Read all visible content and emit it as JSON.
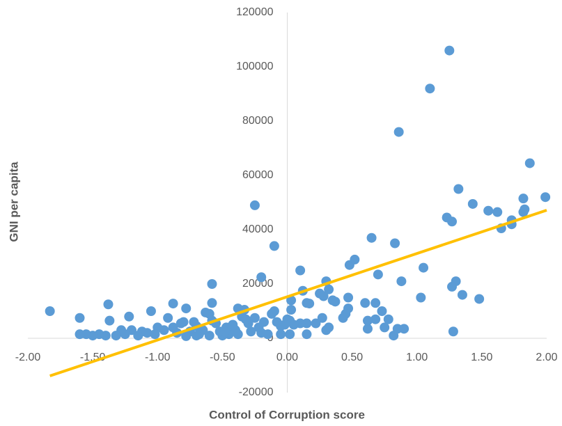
{
  "chart_data": {
    "type": "scatter",
    "x_label": "Control of Corruption score",
    "y_label": "GNI per capita",
    "xlim": [
      -2,
      2
    ],
    "xticks": [
      {
        "value": -2,
        "label": "-2.00"
      },
      {
        "value": -1.5,
        "label": "-1.50"
      },
      {
        "value": -1,
        "label": "-1.00"
      },
      {
        "value": -0.5,
        "label": "-0.50"
      },
      {
        "value": 0,
        "label": "0.00"
      },
      {
        "value": 0.5,
        "label": "0.50"
      },
      {
        "value": 1,
        "label": "1.00"
      },
      {
        "value": 1.5,
        "label": "1.50"
      },
      {
        "value": 2,
        "label": "2.00"
      }
    ],
    "ylim": [
      -20000,
      120000
    ],
    "yticks": [
      -20000,
      0,
      20000,
      40000,
      60000,
      80000,
      100000,
      120000
    ],
    "grid": false,
    "series": [
      {
        "color": "#5b9bd5",
        "x": [
          -1.83,
          -1.6,
          -1.38,
          -1.22,
          -1.05,
          -0.88,
          -0.78,
          -0.58,
          -0.58,
          -0.25,
          -0.2,
          -0.1,
          0.1,
          0.12,
          0.3,
          0.32,
          0.48,
          0.52,
          0.65,
          0.7,
          0.83,
          0.86,
          0.88,
          1.1,
          1.25,
          1.05,
          1.03,
          1.23,
          1.27,
          1.32,
          1.3,
          1.27,
          1.35,
          1.43,
          1.48,
          1.55,
          1.62,
          1.65,
          1.73,
          1.73,
          1.82,
          1.82,
          1.83,
          1.87,
          1.99,
          1.28,
          0.82,
          0.85,
          0.9,
          0.78,
          0.73,
          0.68,
          0.68,
          0.75,
          0.62,
          0.6,
          0.47,
          0.47,
          0.45,
          0.43,
          0.35,
          0.37,
          0.28,
          0.25,
          0.27,
          0.22,
          0.3,
          0.32,
          0.15,
          0.17,
          0.15,
          0.15,
          0.1,
          0.05,
          0.02,
          0,
          0.03,
          0.03,
          0.02,
          -0.02,
          -0.05,
          -0.08,
          -0.1,
          -0.12,
          -0.18,
          -0.2,
          -0.22,
          -0.25,
          -0.28,
          -0.3,
          -0.33,
          -0.35,
          -0.38,
          -0.4,
          -0.42,
          -0.45,
          -0.47,
          -0.5,
          -0.52,
          -0.55,
          -0.58,
          -0.6,
          -0.63,
          -0.65,
          -0.68,
          -0.7,
          -0.72,
          -0.75,
          -0.78,
          -0.8,
          -0.82,
          -0.85,
          -0.88,
          -0.92,
          -0.95,
          -1,
          -1.02,
          -1.08,
          -1.12,
          -1.15,
          -1.2,
          -1.25,
          -1.28,
          -1.32,
          -1.37,
          -1.4,
          -1.45,
          -1.5,
          -1.55,
          -1.6,
          -0.38,
          -0.15,
          -0.6,
          -0.7,
          -0.32,
          -0.48,
          -0.05,
          0.62
        ],
        "values": [
          10000,
          7500,
          12500,
          8000,
          10000,
          12800,
          11000,
          20000,
          13000,
          49000,
          22500,
          34000,
          25000,
          17500,
          21000,
          18000,
          27000,
          29000,
          37000,
          23500,
          35000,
          76000,
          21000,
          92000,
          106000,
          26000,
          15000,
          44500,
          43000,
          55000,
          21000,
          19000,
          16000,
          49500,
          14500,
          47000,
          46500,
          40500,
          42000,
          43500,
          51500,
          46500,
          47500,
          64500,
          52000,
          2500,
          1000,
          3500,
          3500,
          7000,
          10000,
          13000,
          7000,
          4000,
          3500,
          13000,
          15000,
          11000,
          9000,
          7500,
          14000,
          13500,
          15500,
          16500,
          7500,
          5500,
          3000,
          4000,
          13000,
          12800,
          5500,
          1500,
          5500,
          5000,
          6500,
          7000,
          14000,
          10500,
          1500,
          5000,
          4500,
          6000,
          10000,
          9000,
          6000,
          2000,
          4000,
          7500,
          2500,
          5500,
          10500,
          8000,
          11000,
          3000,
          5000,
          1500,
          4000,
          1000,
          2500,
          5500,
          6500,
          9000,
          9500,
          3000,
          1500,
          4500,
          6000,
          2500,
          800,
          6000,
          5500,
          2000,
          4000,
          7500,
          3000,
          4000,
          1500,
          2000,
          2500,
          1000,
          3000,
          1500,
          3000,
          1000,
          6500,
          1000,
          1500,
          1000,
          1500,
          1500,
          1500,
          1500,
          1000,
          1000,
          7000,
          2500,
          1500,
          6500
        ]
      }
    ],
    "trendline": {
      "color": "#ffc000",
      "x": [
        -1.83,
        2
      ],
      "values": [
        -13850,
        47180
      ]
    }
  }
}
